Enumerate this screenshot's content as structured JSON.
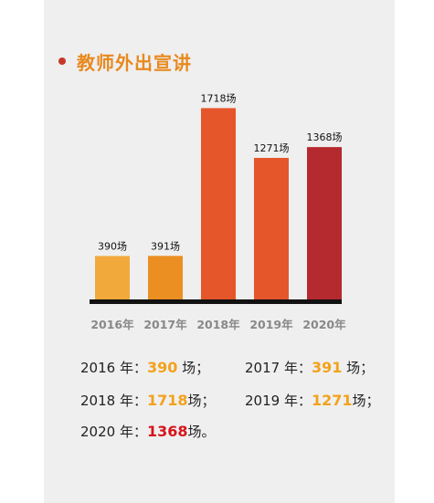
{
  "title": "教师外出宣讲",
  "colors": {
    "title": "#e8891e",
    "dot": "#c8382a",
    "axis": "#111111",
    "value_orange": "#f2a21c",
    "value_red": "#d4161c"
  },
  "chart_data": {
    "type": "bar",
    "title": "教师外出宣讲",
    "categories": [
      "2016年",
      "2017年",
      "2018年",
      "2019年",
      "2020年"
    ],
    "values": [
      390,
      391,
      1718,
      1271,
      1368
    ],
    "data_labels": [
      "390场",
      "391场",
      "1718场",
      "1271场",
      "1368场"
    ],
    "bar_colors": [
      "#f2a93b",
      "#ec8f22",
      "#e5562a",
      "#e5562a",
      "#b52a2e"
    ],
    "ylim": [
      0,
      2000
    ],
    "grid": false,
    "legend": "none"
  },
  "summary": {
    "row1_a": {
      "prefix": "2016 年：",
      "value": "390",
      "suffix": " 场；"
    },
    "row1_b": {
      "prefix": "2017 年：",
      "value": "391",
      "suffix": " 场；"
    },
    "row2_a": {
      "prefix": "2018 年：",
      "value": "1718",
      "suffix": "场；"
    },
    "row2_b": {
      "prefix": "2019 年：",
      "value": "1271",
      "suffix": "场；"
    },
    "row3_a": {
      "prefix": "2020 年：",
      "value": "1368",
      "suffix": "场。"
    }
  }
}
